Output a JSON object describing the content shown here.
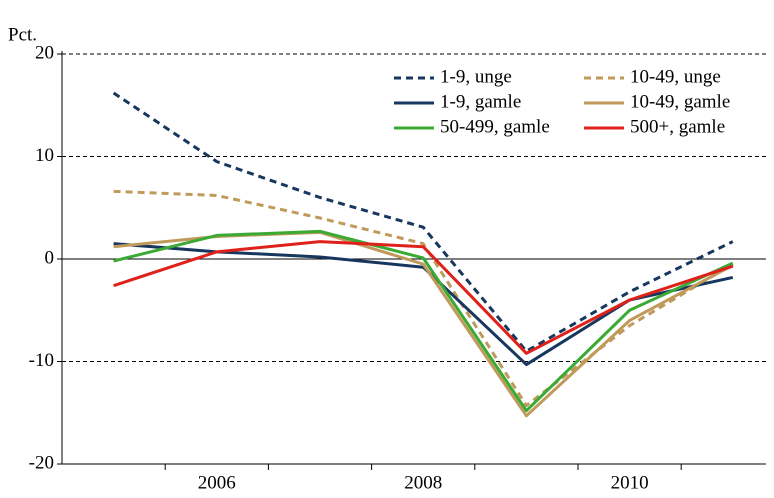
{
  "chart_data": {
    "type": "line",
    "ylabel": "Pct.",
    "categories": [
      null,
      "2006",
      null,
      "2008",
      null,
      "2010",
      null
    ],
    "ylim": [
      -20,
      20
    ],
    "yticks": [
      20,
      10,
      0,
      -10,
      -20
    ],
    "grid": true,
    "legend": "top-right",
    "series": [
      {
        "name": "1-9, unge",
        "color": "#17375e",
        "dashed": true,
        "values": [
          16.2,
          9.5,
          6.0,
          3.1,
          -9.0,
          -3.2,
          1.7
        ]
      },
      {
        "name": "10-49, unge",
        "color": "#c09a5b",
        "dashed": true,
        "values": [
          6.6,
          6.2,
          4.0,
          1.5,
          -14.3,
          -6.5,
          -0.5
        ]
      },
      {
        "name": "1-9, gamle",
        "color": "#17375e",
        "dashed": false,
        "values": [
          1.5,
          0.7,
          0.2,
          -0.8,
          -10.3,
          -4.0,
          -1.8
        ]
      },
      {
        "name": "10-49, gamle",
        "color": "#c09a5b",
        "dashed": false,
        "values": [
          1.2,
          2.2,
          2.6,
          -0.5,
          -15.3,
          -6.0,
          -0.6
        ]
      },
      {
        "name": "50-499, gamle",
        "color": "#3aaa35",
        "dashed": false,
        "values": [
          -0.2,
          2.3,
          2.7,
          0.1,
          -14.8,
          -5.0,
          -0.4
        ]
      },
      {
        "name": "500+, gamle",
        "color": "#e0201b",
        "dashed": false,
        "values": [
          -2.6,
          0.7,
          1.7,
          1.2,
          -9.2,
          -4.0,
          -0.7
        ]
      }
    ]
  }
}
